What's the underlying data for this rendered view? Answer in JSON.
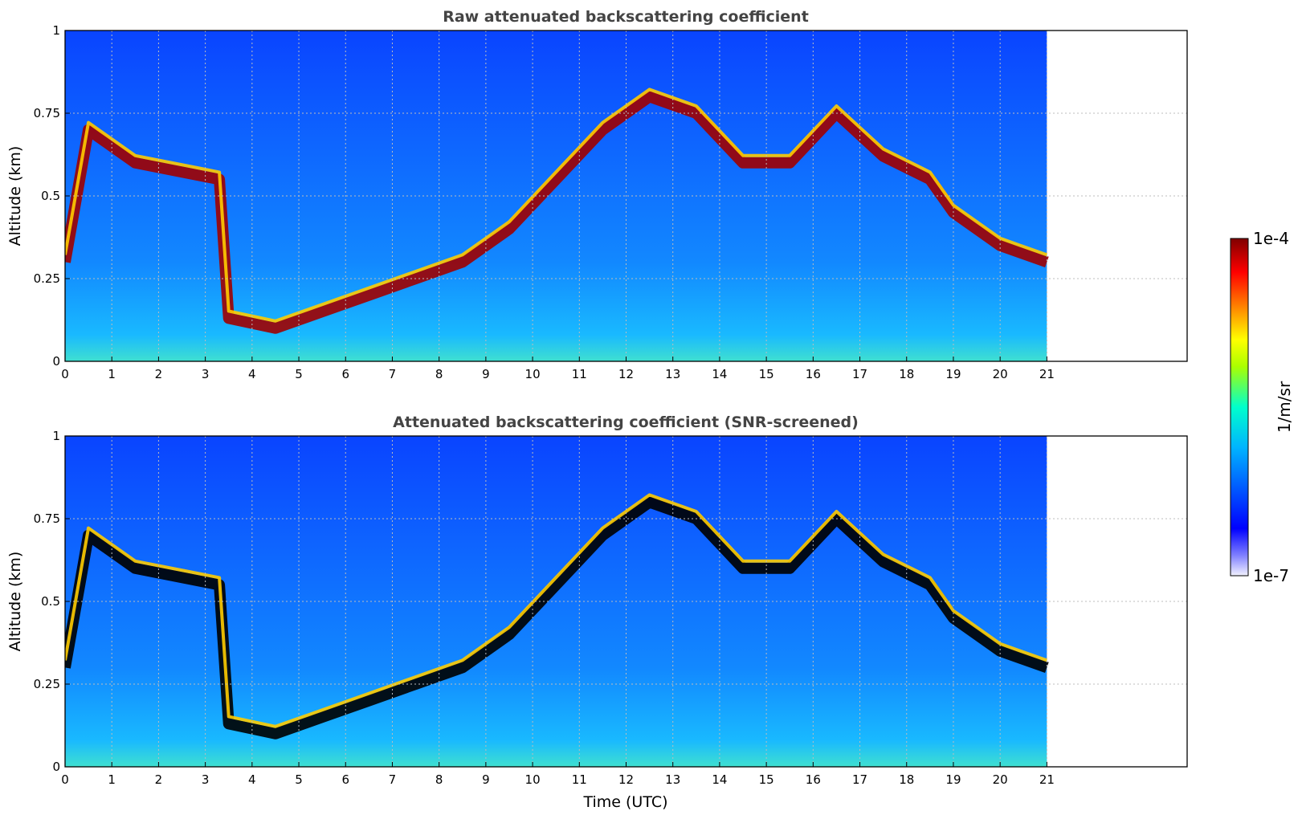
{
  "chart_data": [
    {
      "type": "heatmap",
      "title": "Raw attenuated backscattering coefficient",
      "xlabel": "",
      "ylabel": "Altitude (km)",
      "xlim": [
        0,
        24
      ],
      "ylim": [
        0,
        1
      ],
      "xticks": [
        "0",
        "1",
        "2",
        "3",
        "4",
        "5",
        "6",
        "7",
        "8",
        "9",
        "10",
        "11",
        "12",
        "13",
        "14",
        "15",
        "16",
        "17",
        "18",
        "19",
        "20",
        "21"
      ],
      "yticks": [
        "0",
        "0.25",
        "0.5",
        "0.75",
        "1"
      ],
      "grid": true,
      "data_end_hour": 21,
      "layer_top_km": [
        [
          0.0,
          0.3
        ],
        [
          0.5,
          0.7
        ],
        [
          1.5,
          0.6
        ],
        [
          3.3,
          0.55
        ],
        [
          3.5,
          0.13
        ],
        [
          4.5,
          0.1
        ],
        [
          5.5,
          0.15
        ],
        [
          6.5,
          0.2
        ],
        [
          7.5,
          0.25
        ],
        [
          8.5,
          0.3
        ],
        [
          9.5,
          0.4
        ],
        [
          10.5,
          0.55
        ],
        [
          11.5,
          0.7
        ],
        [
          12.5,
          0.8
        ],
        [
          13.5,
          0.75
        ],
        [
          14.5,
          0.6
        ],
        [
          15.5,
          0.6
        ],
        [
          16.5,
          0.75
        ],
        [
          17.5,
          0.62
        ],
        [
          18.5,
          0.55
        ],
        [
          19.0,
          0.45
        ],
        [
          20.0,
          0.35
        ],
        [
          21.0,
          0.3
        ]
      ]
    },
    {
      "type": "heatmap",
      "title": "Attenuated backscattering coefficient (SNR-screened)",
      "xlabel": "Time (UTC)",
      "ylabel": "Altitude (km)",
      "xlim": [
        0,
        24
      ],
      "ylim": [
        0,
        1
      ],
      "xticks": [
        "0",
        "1",
        "2",
        "3",
        "4",
        "5",
        "6",
        "7",
        "8",
        "9",
        "10",
        "11",
        "12",
        "13",
        "14",
        "15",
        "16",
        "17",
        "18",
        "19",
        "20",
        "21"
      ],
      "yticks": [
        "0",
        "0.25",
        "0.5",
        "0.75",
        "1"
      ],
      "grid": true,
      "data_end_hour": 21,
      "layer_top_km": [
        [
          0.0,
          0.3
        ],
        [
          0.5,
          0.7
        ],
        [
          1.5,
          0.6
        ],
        [
          3.3,
          0.55
        ],
        [
          3.5,
          0.13
        ],
        [
          4.5,
          0.1
        ],
        [
          5.5,
          0.15
        ],
        [
          6.5,
          0.2
        ],
        [
          7.5,
          0.25
        ],
        [
          8.5,
          0.3
        ],
        [
          9.5,
          0.4
        ],
        [
          10.5,
          0.55
        ],
        [
          11.5,
          0.7
        ],
        [
          12.5,
          0.8
        ],
        [
          13.5,
          0.75
        ],
        [
          14.5,
          0.6
        ],
        [
          15.5,
          0.6
        ],
        [
          16.5,
          0.75
        ],
        [
          17.5,
          0.62
        ],
        [
          18.5,
          0.55
        ],
        [
          19.0,
          0.45
        ],
        [
          20.0,
          0.35
        ],
        [
          21.0,
          0.3
        ]
      ]
    }
  ],
  "colorbar": {
    "min_label": "1e-7",
    "max_label": "1e-4",
    "label": "1/m/sr",
    "colors": [
      "#f2f2ff",
      "#0000ff",
      "#00aaff",
      "#00ffcc",
      "#ffff00",
      "#ff6600",
      "#ff0000",
      "#8b0000"
    ]
  }
}
